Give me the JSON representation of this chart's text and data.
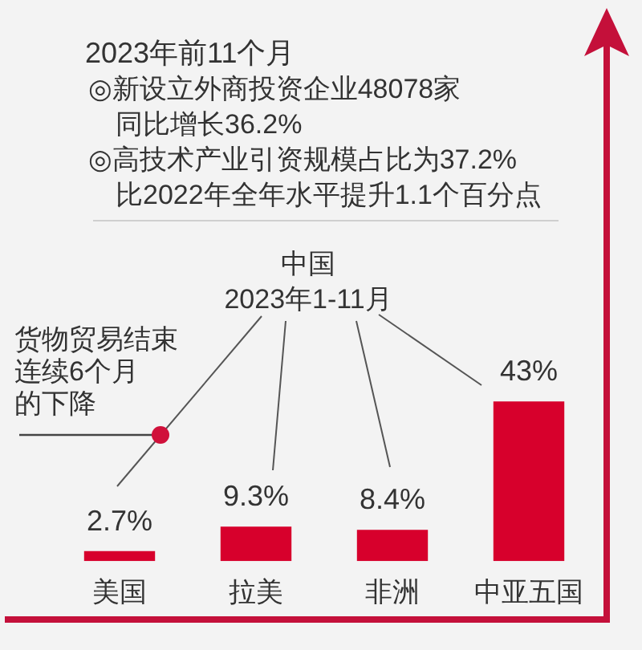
{
  "chart_data": {
    "type": "bar",
    "title": "2023年前11个月",
    "categories": [
      "美国",
      "拉美",
      "非洲",
      "中亚五国"
    ],
    "values": [
      2.7,
      9.3,
      8.4,
      43
    ],
    "color": "#d7002c",
    "value_labels": [
      "2.7%",
      "9.3%",
      "8.4%",
      "43%"
    ],
    "tick_labels": "x",
    "grid": false,
    "legend": false,
    "annotations": [
      "◎新设立外商投资企业48078家同比增长36.2%",
      "◎高技术产业引资规模占比为37.2%比2022年全年水平提升1.1个百分点",
      "中国2023年1-11月",
      "货物贸易结束连续6个月的下降"
    ]
  }
}
